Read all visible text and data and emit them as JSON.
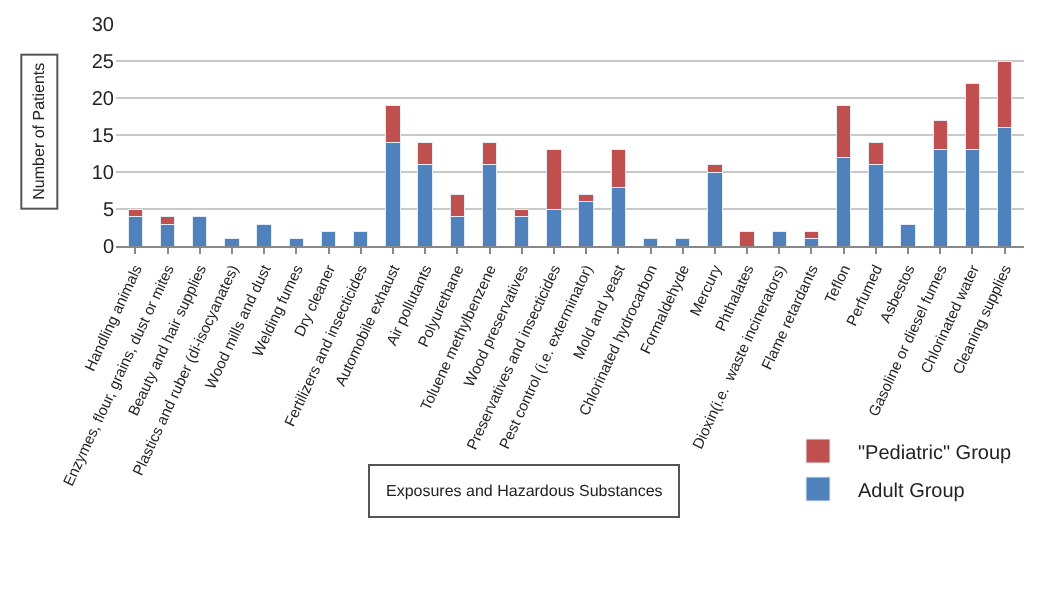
{
  "chart_data": {
    "type": "bar",
    "stacked": true,
    "xlabel": "Exposures and Hazardous Substances",
    "ylabel": "Number of Patients",
    "categories": [
      "Handling animals",
      "Enzymes, flour, grains, dust or mites",
      "Beauty and hair supplies",
      "Plastics and ruber (di-isocyanates)",
      "Wood mills and dust",
      "Welding fumes",
      "Dry cleaner",
      "Fertilizers and insecticides",
      "Automobile exhaust",
      "Air pollutants",
      "Polyurethane",
      "Toluene methylbenzene",
      "Wood preservatives",
      "Preservatives and insecticides",
      "Pest control (i.e. exterminator)",
      "Mold and yeast",
      "Chlorinated hydrocarbon",
      "Formaldehyde",
      "Mercury",
      "Phthalates",
      "Dioxin(i.e.  waste incinerators)",
      "Flame retardants",
      "Teflon",
      "Perfumed",
      "Asbestos",
      "Gasoline or diesel fumes",
      "Chlorinated water",
      "Cleaning supplies"
    ],
    "series": [
      {
        "name": "Adult Group",
        "color": "#4f81bd",
        "values": [
          4,
          3,
          4,
          1,
          3,
          1,
          2,
          2,
          14,
          11,
          4,
          11,
          4,
          5,
          6,
          8,
          1,
          1,
          10,
          0,
          2,
          1,
          12,
          11,
          3,
          13,
          13,
          16
        ]
      },
      {
        "name": "\"Pediatric\" Group",
        "color": "#c0504d",
        "values": [
          1,
          1,
          0,
          0,
          0,
          0,
          0,
          0,
          5,
          3,
          3,
          3,
          1,
          8,
          1,
          5,
          0,
          0,
          1,
          2,
          0,
          1,
          7,
          3,
          0,
          4,
          9,
          9
        ]
      }
    ],
    "ylim": [
      0,
      30
    ],
    "yticks": [
      0,
      5,
      10,
      15,
      20,
      25,
      30
    ],
    "grid": "y",
    "legend": "bottom right"
  }
}
